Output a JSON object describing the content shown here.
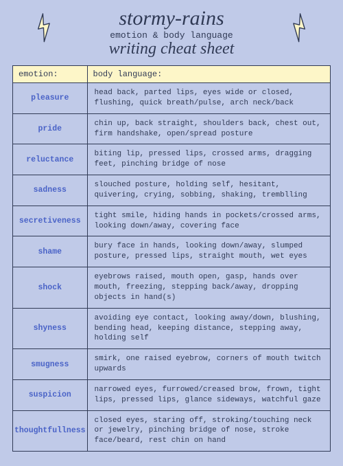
{
  "header": {
    "title_line1": "stormy-rains",
    "subtitle": "emotion & body language",
    "title_line2": "writing cheat sheet"
  },
  "table": {
    "col1_header": "emotion:",
    "col2_header": "body language:",
    "rows": [
      {
        "emotion": "pleasure",
        "desc": "head back, parted lips, eyes wide or closed, flushing, quick breath/pulse, arch neck/back"
      },
      {
        "emotion": "pride",
        "desc": "chin up, back straight, shoulders back, chest out, firm handshake, open/spread posture"
      },
      {
        "emotion": "reluctance",
        "desc": "biting lip, pressed lips, crossed arms, dragging feet, pinching bridge of nose"
      },
      {
        "emotion": "sadness",
        "desc": "slouched posture, holding self, hesitant, quivering, crying, sobbing, shaking, tremblling"
      },
      {
        "emotion": "secretiveness",
        "desc": "tight smile, hiding hands in pockets/crossed arms, looking down/away, covering face"
      },
      {
        "emotion": "shame",
        "desc": "bury face in hands, looking down/away, slumped posture, pressed lips, straight mouth, wet eyes"
      },
      {
        "emotion": "shock",
        "desc": "eyebrows raised, mouth open, gasp, hands over mouth, freezing, stepping back/away, dropping objects in hand(s)"
      },
      {
        "emotion": "shyness",
        "desc": "avoiding eye contact, looking away/down, blushing, bending head, keeping distance, stepping away, holding self"
      },
      {
        "emotion": "smugness",
        "desc": "smirk, one raised eyebrow, corners of mouth twitch upwards"
      },
      {
        "emotion": "suspicion",
        "desc": "narrowed eyes, furrowed/creased brow, frown, tight lips, pressed lips, glance sideways, watchful gaze"
      },
      {
        "emotion": "thoughtfullness",
        "desc": "closed eyes, staring off, stroking/touching neck or jewelry, pinching bridge of nose, stroke face/beard, rest chin on hand"
      }
    ]
  },
  "style": {
    "background": "#c0cae8",
    "header_bg": "#fdf6c8",
    "border_color": "#303a55",
    "emotion_color": "#4a63c7",
    "text_color": "#303a55",
    "bolt_fill": "#fdf6c8",
    "bolt_stroke": "#303a55"
  }
}
